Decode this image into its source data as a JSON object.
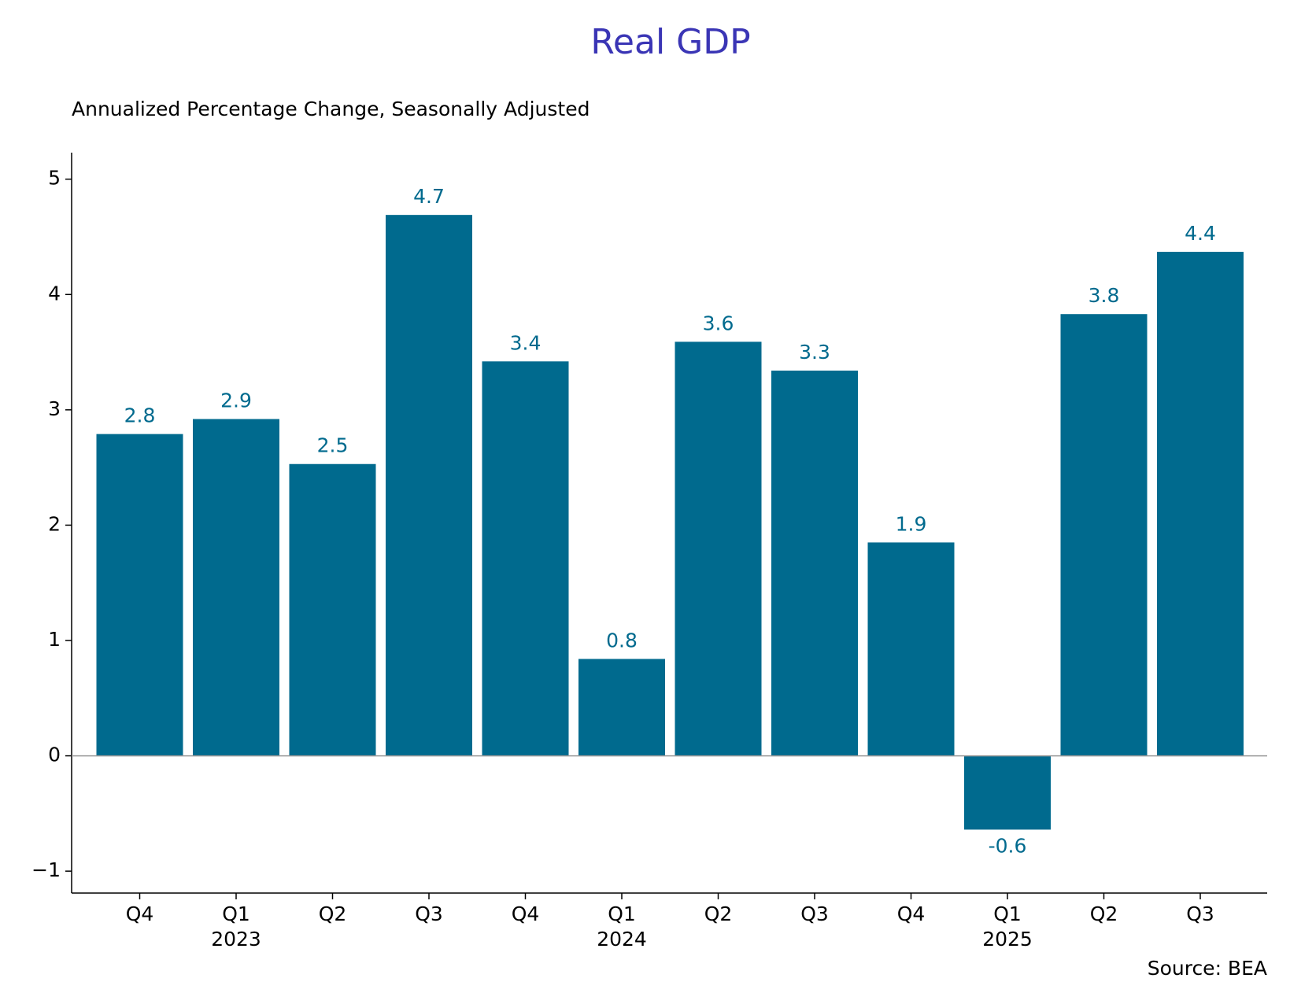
{
  "chart_data": {
    "type": "bar",
    "title": "Real GDP",
    "subtitle": "Annualized Percentage Change, Seasonally Adjusted",
    "source": "Source: BEA",
    "categories": [
      "Q4",
      "Q1",
      "Q2",
      "Q3",
      "Q4",
      "Q1",
      "Q2",
      "Q3",
      "Q4",
      "Q1",
      "Q2",
      "Q3"
    ],
    "category_groups": [
      null,
      "2023",
      null,
      null,
      null,
      "2024",
      null,
      null,
      null,
      "2025",
      null,
      null
    ],
    "values": [
      2.79,
      2.92,
      2.53,
      4.69,
      3.42,
      0.84,
      3.59,
      3.34,
      1.85,
      -0.64,
      3.83,
      4.37
    ],
    "value_labels": [
      "2.8",
      "2.9",
      "2.5",
      "4.7",
      "3.4",
      "0.8",
      "3.6",
      "3.3",
      "1.9",
      "-0.6",
      "3.8",
      "4.4"
    ],
    "color": "#006a8e",
    "ylim": [
      -1.19,
      5.23
    ],
    "yticks": [
      {
        "value": -1,
        "label": "−1"
      },
      0,
      1,
      2,
      3,
      4,
      5
    ],
    "grid": false
  }
}
